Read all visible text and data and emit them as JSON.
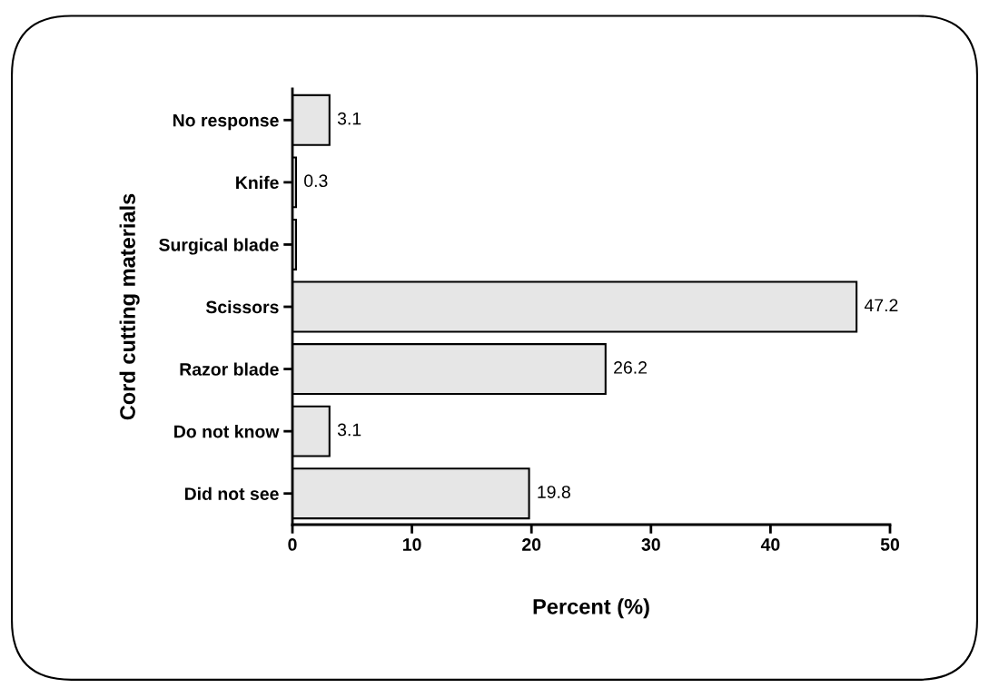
{
  "chart_data": {
    "type": "bar",
    "orientation": "horizontal",
    "xlabel": "Percent (%)",
    "ylabel": "Cord cutting materials",
    "categories": [
      "No response",
      "Knife",
      "Surgical blade",
      "Scissors",
      "Razor blade",
      "Do not know",
      "Did not see"
    ],
    "values": [
      3.1,
      0.3,
      0.3,
      47.2,
      26.2,
      3.1,
      19.8
    ],
    "value_labels": [
      "3.1",
      "0.3",
      null,
      "47.2",
      "26.2",
      "3.1",
      "19.8"
    ],
    "color": "#e6e6e6",
    "xlim": [
      0,
      50
    ],
    "xticks": [
      0,
      10,
      20,
      30,
      40,
      50
    ],
    "grid": false,
    "legend": false
  }
}
